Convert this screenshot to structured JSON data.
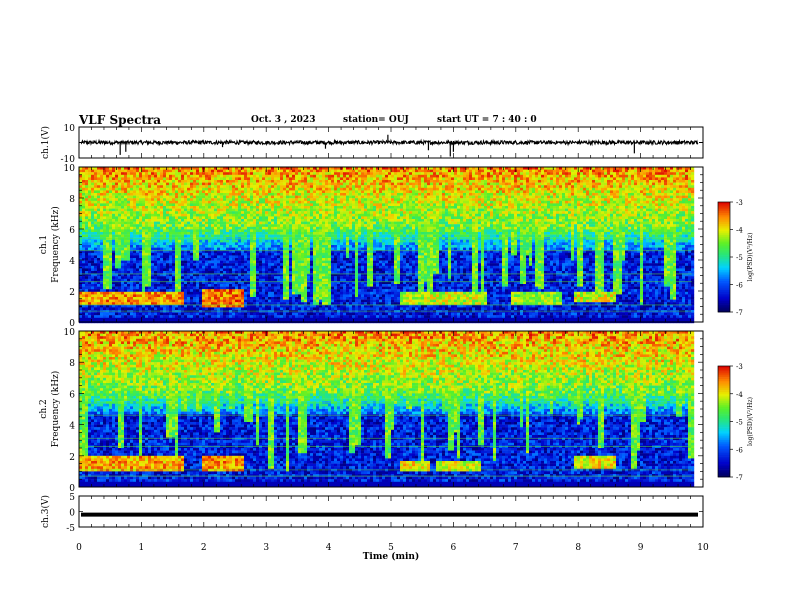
{
  "header": {
    "title": "VLF Spectra",
    "date": "Oct. 3  , 2023",
    "station": "station= OUJ",
    "start": "start  UT  =   7 : 40 : 0"
  },
  "chart_data": [
    {
      "type": "line",
      "panel": "ch1-waveform",
      "ylabel": "ch.1(V)",
      "ylim": [
        -10,
        10
      ],
      "yticks": [
        "10",
        "-10"
      ],
      "baseline": 0,
      "noise_amplitude": 1.2,
      "spikes": [
        {
          "t": 0.66,
          "v": -8
        },
        {
          "t": 0.75,
          "v": -6
        },
        {
          "t": 4.95,
          "v": 5
        },
        {
          "t": 5.95,
          "v": -9
        },
        {
          "t": 6.0,
          "v": -6
        },
        {
          "t": 5.6,
          "v": -5
        },
        {
          "t": 8.9,
          "v": -7
        },
        {
          "t": 3.95,
          "v": -4
        },
        {
          "t": 2.3,
          "v": -3
        }
      ],
      "color": "#000000"
    },
    {
      "type": "heatmap",
      "panel": "ch1-spectrogram",
      "ylabel": "ch.1\nFrequency  (kHz)",
      "ylim": [
        0,
        10
      ],
      "yticks": [
        "0",
        "2",
        "4",
        "6",
        "8",
        "10"
      ],
      "xlim": [
        0,
        10
      ],
      "data_xmax": 9.82,
      "colorbar": {
        "label": "log(PSD)(V²/Hz)",
        "min": -7,
        "max": -3,
        "ticks": [
          "-3",
          "-4",
          "-5",
          "-6",
          "-7"
        ]
      },
      "bands": [
        {
          "t0": 0.0,
          "t1": 1.65,
          "f0": 1.2,
          "f1": 2.1,
          "level": -3.6
        },
        {
          "t0": 1.95,
          "t1": 2.6,
          "f0": 1.0,
          "f1": 2.2,
          "level": -3.5
        },
        {
          "t0": 5.1,
          "t1": 6.5,
          "f0": 1.2,
          "f1": 2.0,
          "level": -4.2
        },
        {
          "t0": 6.9,
          "t1": 7.7,
          "f0": 1.2,
          "f1": 2.0,
          "level": -4.4
        },
        {
          "t0": 7.9,
          "t1": 8.6,
          "f0": 1.3,
          "f1": 2.0,
          "level": -4.1
        }
      ]
    },
    {
      "type": "heatmap",
      "panel": "ch2-spectrogram",
      "ylabel": "ch.2\nFrequency  (kHz)",
      "ylim": [
        0,
        10
      ],
      "yticks": [
        "0",
        "2",
        "4",
        "6",
        "8",
        "10"
      ],
      "xlim": [
        0,
        10
      ],
      "data_xmax": 9.82,
      "colorbar": {
        "label": "log(PSD)(V²/Hz)",
        "min": -7,
        "max": -3,
        "ticks": [
          "-3",
          "-4",
          "-5",
          "-6",
          "-7"
        ]
      },
      "bands": [
        {
          "t0": 0.0,
          "t1": 1.65,
          "f0": 1.0,
          "f1": 2.0,
          "level": -3.7
        },
        {
          "t0": 1.95,
          "t1": 2.6,
          "f0": 1.0,
          "f1": 2.0,
          "level": -3.6
        },
        {
          "t0": 5.1,
          "t1": 5.6,
          "f0": 1.1,
          "f1": 1.8,
          "level": -4.0
        },
        {
          "t0": 5.7,
          "t1": 6.4,
          "f0": 1.1,
          "f1": 1.8,
          "level": -4.1
        },
        {
          "t0": 7.9,
          "t1": 8.6,
          "f0": 1.2,
          "f1": 2.0,
          "level": -4.0
        }
      ]
    },
    {
      "type": "line",
      "panel": "ch3-waveform",
      "ylabel": "ch.3(V)",
      "ylim": [
        -5,
        5
      ],
      "yticks": [
        "5",
        "0",
        "-5"
      ],
      "value": -1,
      "color": "#000000",
      "xlabel": "Time  (min)",
      "xlim": [
        0,
        10
      ],
      "xticks": [
        "0",
        "1",
        "2",
        "3",
        "4",
        "5",
        "6",
        "7",
        "8",
        "9",
        "10"
      ]
    }
  ]
}
